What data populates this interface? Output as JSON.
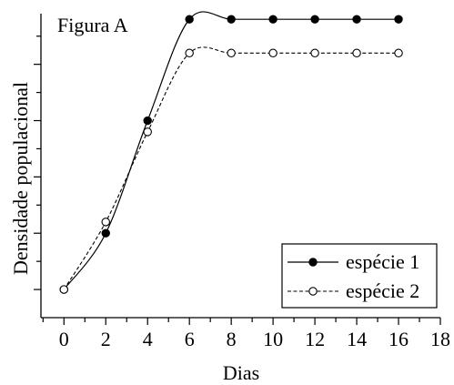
{
  "chart_data": {
    "type": "line",
    "title": "Figura A",
    "xlabel": "Dias",
    "ylabel": "Densidade populacional",
    "xlim": [
      -1.1,
      18
    ],
    "ylim": [
      -0.5,
      4.9
    ],
    "xticks": [
      0,
      2,
      4,
      6,
      8,
      10,
      12,
      14,
      16,
      18
    ],
    "xtick_labels": [
      "0",
      "2",
      "4",
      "6",
      "8",
      "10",
      "12",
      "14",
      "16",
      "18"
    ],
    "x": [
      0,
      2,
      4,
      6,
      8,
      10,
      12,
      14,
      16
    ],
    "series": [
      {
        "name": "espécie 1",
        "marker": "filled-circle",
        "line": "solid",
        "values": [
          0.0,
          1.0,
          3.0,
          4.8,
          4.8,
          4.8,
          4.8,
          4.8,
          4.8
        ]
      },
      {
        "name": "espécie 2",
        "marker": "open-circle",
        "line": "dashed",
        "values": [
          0.0,
          1.2,
          2.8,
          4.2,
          4.2,
          4.2,
          4.2,
          4.2,
          4.2
        ]
      }
    ],
    "y_tick_labels_shown": false,
    "grid": false,
    "legend_position": "bottom-right"
  }
}
